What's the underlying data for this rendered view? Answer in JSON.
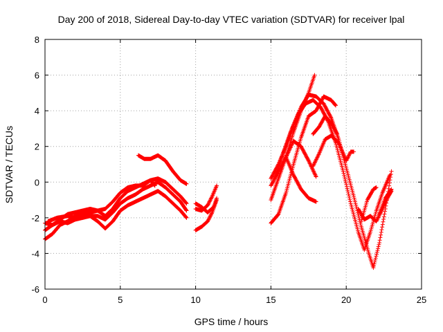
{
  "chart_data": {
    "type": "scatter",
    "title": "Day 200 of 2018, Sidereal Day-to-day VTEC variation (SDTVAR) for receiver lpal",
    "xlabel": "GPS time / hours",
    "ylabel": "SDTVAR / TECUs",
    "xlim": [
      0,
      25
    ],
    "ylim": [
      -6,
      8
    ],
    "xticks": [
      "0",
      "5",
      "10",
      "15",
      "20",
      "25"
    ],
    "yticks": [
      "-6",
      "-4",
      "-2",
      "0",
      "2",
      "4",
      "6",
      "8"
    ],
    "grid": true,
    "legend": "none",
    "marker": "plus",
    "color": "#ff0000",
    "series": [
      {
        "name": "track-1",
        "points": [
          [
            0.0,
            -3.2
          ],
          [
            0.5,
            -2.9
          ],
          [
            1.0,
            -2.4
          ],
          [
            1.5,
            -2.2
          ],
          [
            2.0,
            -1.9
          ],
          [
            2.5,
            -1.8
          ],
          [
            3.0,
            -1.7
          ],
          [
            3.5,
            -1.6
          ],
          [
            4.0,
            -1.5
          ],
          [
            4.5,
            -1.1
          ],
          [
            5.0,
            -0.6
          ],
          [
            5.5,
            -0.3
          ],
          [
            6.0,
            -0.2
          ],
          [
            6.5,
            -0.2
          ],
          [
            7.0,
            0.1
          ],
          [
            7.5,
            0.2
          ],
          [
            8.0,
            0.0
          ],
          [
            8.5,
            -0.4
          ],
          [
            9.0,
            -0.8
          ],
          [
            9.4,
            -1.2
          ]
        ]
      },
      {
        "name": "track-2",
        "points": [
          [
            0.0,
            -2.3
          ],
          [
            0.5,
            -2.4
          ],
          [
            1.0,
            -2.1
          ],
          [
            1.5,
            -1.8
          ],
          [
            2.0,
            -1.7
          ],
          [
            2.5,
            -1.6
          ],
          [
            3.0,
            -1.5
          ],
          [
            3.5,
            -1.6
          ],
          [
            4.0,
            -1.9
          ],
          [
            4.5,
            -1.5
          ],
          [
            5.0,
            -0.9
          ],
          [
            5.5,
            -0.5
          ],
          [
            6.0,
            -0.3
          ],
          [
            6.5,
            -0.1
          ],
          [
            7.0,
            0.1
          ],
          [
            7.3,
            -0.2
          ]
        ]
      },
      {
        "name": "track-3",
        "points": [
          [
            0.0,
            -2.7
          ],
          [
            0.5,
            -2.4
          ],
          [
            1.0,
            -2.2
          ],
          [
            1.5,
            -2.3
          ],
          [
            2.0,
            -2.1
          ],
          [
            2.5,
            -2.0
          ],
          [
            3.0,
            -1.9
          ],
          [
            3.5,
            -1.9
          ],
          [
            4.0,
            -2.1
          ],
          [
            4.5,
            -1.7
          ],
          [
            5.0,
            -1.2
          ],
          [
            5.5,
            -0.9
          ],
          [
            6.0,
            -0.7
          ],
          [
            6.5,
            -0.4
          ],
          [
            7.0,
            -0.2
          ],
          [
            7.5,
            0.0
          ],
          [
            8.0,
            -0.3
          ],
          [
            8.5,
            -0.7
          ],
          [
            9.0,
            -1.1
          ],
          [
            9.4,
            -1.6
          ]
        ]
      },
      {
        "name": "track-4",
        "points": [
          [
            0.2,
            -2.2
          ],
          [
            0.8,
            -2.0
          ],
          [
            1.5,
            -1.9
          ],
          [
            2.0,
            -2.0
          ],
          [
            2.5,
            -1.8
          ],
          [
            3.0,
            -1.9
          ],
          [
            3.5,
            -2.2
          ],
          [
            4.0,
            -2.6
          ],
          [
            4.5,
            -2.2
          ],
          [
            5.0,
            -1.6
          ],
          [
            5.5,
            -1.3
          ],
          [
            6.0,
            -1.1
          ],
          [
            6.5,
            -0.9
          ],
          [
            7.0,
            -0.7
          ],
          [
            7.5,
            -0.5
          ],
          [
            8.0,
            -0.8
          ],
          [
            8.5,
            -1.2
          ],
          [
            9.0,
            -1.6
          ],
          [
            9.4,
            -2.0
          ]
        ]
      },
      {
        "name": "track-5",
        "points": [
          [
            6.2,
            1.5
          ],
          [
            6.6,
            1.3
          ],
          [
            7.0,
            1.3
          ],
          [
            7.5,
            1.5
          ],
          [
            8.0,
            1.2
          ],
          [
            8.5,
            0.6
          ],
          [
            9.0,
            0.1
          ],
          [
            9.4,
            -0.1
          ]
        ]
      },
      {
        "name": "track-6",
        "points": [
          [
            10.0,
            -1.5
          ],
          [
            10.4,
            -1.6
          ],
          [
            10.8,
            -1.3
          ],
          [
            11.1,
            -0.8
          ],
          [
            11.4,
            -0.2
          ]
        ]
      },
      {
        "name": "track-7",
        "points": [
          [
            10.0,
            -2.7
          ],
          [
            10.4,
            -2.5
          ],
          [
            10.8,
            -2.2
          ],
          [
            11.1,
            -1.7
          ],
          [
            11.4,
            -1.0
          ]
        ]
      },
      {
        "name": "track-8",
        "points": [
          [
            10.0,
            -1.2
          ],
          [
            10.4,
            -1.4
          ],
          [
            10.8,
            -1.7
          ],
          [
            11.2,
            -1.4
          ],
          [
            11.4,
            -0.9
          ]
        ]
      },
      {
        "name": "track-9",
        "points": [
          [
            15.0,
            -2.3
          ],
          [
            15.5,
            -1.8
          ],
          [
            16.0,
            -0.6
          ],
          [
            16.5,
            1.0
          ],
          [
            17.0,
            2.5
          ],
          [
            17.5,
            3.7
          ],
          [
            18.0,
            4.0
          ],
          [
            18.5,
            4.8
          ],
          [
            19.0,
            4.6
          ],
          [
            19.3,
            4.3
          ]
        ]
      },
      {
        "name": "track-10",
        "points": [
          [
            15.0,
            -1.0
          ],
          [
            15.5,
            0.2
          ],
          [
            16.0,
            1.4
          ],
          [
            16.5,
            2.8
          ],
          [
            17.0,
            4.0
          ],
          [
            17.5,
            5.0
          ],
          [
            17.9,
            6.0
          ]
        ]
      },
      {
        "name": "track-11",
        "points": [
          [
            15.0,
            0.2
          ],
          [
            15.5,
            1.0
          ],
          [
            16.0,
            2.0
          ],
          [
            16.5,
            3.2
          ],
          [
            17.0,
            4.2
          ],
          [
            17.5,
            4.9
          ],
          [
            18.0,
            4.8
          ],
          [
            18.5,
            4.4
          ],
          [
            19.0,
            3.6
          ],
          [
            19.5,
            2.4
          ],
          [
            20.0,
            0.8
          ],
          [
            20.5,
            -0.8
          ],
          [
            21.0,
            -2.5
          ],
          [
            21.5,
            -4.0
          ],
          [
            21.8,
            -4.8
          ],
          [
            22.2,
            -3.4
          ],
          [
            22.6,
            -1.5
          ],
          [
            23.0,
            0.6
          ]
        ]
      },
      {
        "name": "track-12",
        "points": [
          [
            15.0,
            -0.2
          ],
          [
            15.5,
            0.6
          ],
          [
            16.0,
            1.4
          ],
          [
            16.5,
            2.3
          ],
          [
            17.0,
            2.0
          ],
          [
            17.5,
            1.2
          ],
          [
            18.0,
            0.3
          ]
        ]
      },
      {
        "name": "track-13",
        "points": [
          [
            15.3,
            0.3
          ],
          [
            15.8,
            1.6
          ],
          [
            16.3,
            2.8
          ],
          [
            16.8,
            3.8
          ],
          [
            17.3,
            4.4
          ],
          [
            17.8,
            4.6
          ],
          [
            18.3,
            4.2
          ],
          [
            18.8,
            3.4
          ],
          [
            19.3,
            2.2
          ],
          [
            19.8,
            0.6
          ],
          [
            20.3,
            -1.2
          ],
          [
            20.8,
            -2.8
          ],
          [
            21.2,
            -3.8
          ],
          [
            21.6,
            -2.8
          ],
          [
            22.0,
            -1.6
          ],
          [
            22.4,
            -0.6
          ],
          [
            22.9,
            0.4
          ]
        ]
      },
      {
        "name": "track-14",
        "points": [
          [
            16.0,
            1.4
          ],
          [
            16.5,
            0.4
          ],
          [
            17.0,
            -0.4
          ],
          [
            17.5,
            -0.9
          ],
          [
            18.0,
            -1.1
          ]
        ]
      },
      {
        "name": "track-15",
        "points": [
          [
            17.8,
            0.9
          ],
          [
            18.2,
            1.6
          ],
          [
            18.6,
            2.4
          ],
          [
            19.0,
            2.6
          ],
          [
            19.5,
            2.2
          ],
          [
            20.0,
            1.2
          ],
          [
            20.3,
            1.7
          ],
          [
            20.5,
            1.7
          ]
        ]
      },
      {
        "name": "track-16",
        "points": [
          [
            17.8,
            2.7
          ],
          [
            18.2,
            3.1
          ],
          [
            18.6,
            3.7
          ],
          [
            19.0,
            3.3
          ],
          [
            19.4,
            2.7
          ]
        ]
      },
      {
        "name": "track-17",
        "points": [
          [
            20.8,
            -1.5
          ],
          [
            21.2,
            -2.1
          ],
          [
            21.6,
            -1.9
          ],
          [
            22.0,
            -2.2
          ],
          [
            22.4,
            -1.5
          ],
          [
            22.8,
            -0.8
          ],
          [
            23.0,
            -0.5
          ]
        ]
      },
      {
        "name": "track-18",
        "points": [
          [
            21.0,
            -2.2
          ],
          [
            21.4,
            -1.0
          ],
          [
            21.8,
            -0.4
          ],
          [
            22.0,
            -0.3
          ]
        ]
      },
      {
        "name": "track-19",
        "points": [
          [
            22.2,
            -1.8
          ],
          [
            22.6,
            -0.9
          ],
          [
            23.0,
            -0.4
          ]
        ]
      }
    ]
  }
}
